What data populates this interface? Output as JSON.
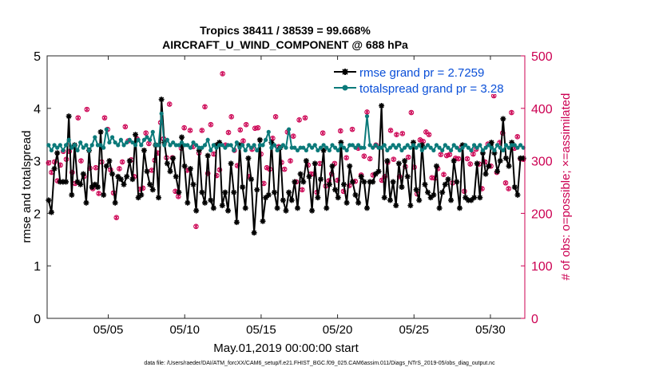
{
  "chart_data": {
    "type": "line",
    "title_line1": "Tropics 38411 / 38539 = 99.668%",
    "title_line2": "AIRCRAFT_U_WIND_COMPONENT @ 688 hPa",
    "xlabel": "May.01,2019 00:00:00 start",
    "ylabel_left": "rmse and totalspread",
    "ylabel_right": "# of obs: o=possible; ×=assimilated",
    "footnote": "data file: /Users/raeder/DAI/ATM_forcXX/CAM6_setup/f.e21.FHIST_BGC.f09_025.CAM6assim.011/Diags_NTrS_2019-05/obs_diag_output.nc",
    "x_range_days": [
      0,
      31.25
    ],
    "x_ticks": [
      {
        "day": 4,
        "label": "05/05"
      },
      {
        "day": 9,
        "label": "05/10"
      },
      {
        "day": 14,
        "label": "05/15"
      },
      {
        "day": 19,
        "label": "05/20"
      },
      {
        "day": 24,
        "label": "05/25"
      },
      {
        "day": 29,
        "label": "05/30"
      }
    ],
    "ylim_left": [
      0,
      5
    ],
    "yticks_left": [
      "0",
      "1",
      "2",
      "3",
      "4",
      "5"
    ],
    "ylim_right": [
      0,
      500
    ],
    "yticks_right": [
      "0",
      "100",
      "200",
      "300",
      "400",
      "500"
    ],
    "legend_position": "top-right",
    "series": [
      {
        "name": "rmse grand pr = 2.7259",
        "color": "#000000",
        "axis": "left",
        "values": [
          2.25,
          2.02,
          2.85,
          3.15,
          2.6,
          2.6,
          2.6,
          3.85,
          2.35,
          3.3,
          2.6,
          2.55,
          2.75,
          2.2,
          3.2,
          2.5,
          2.55,
          2.5,
          3.55,
          2.35,
          2.9,
          3.0,
          2.75,
          2.2,
          2.7,
          2.65,
          2.55,
          2.7,
          3.0,
          2.65,
          3.5,
          2.3,
          2.35,
          3.2,
          2.8,
          2.55,
          2.45,
          3.3,
          2.3,
          4.17,
          3.35,
          2.95,
          2.8,
          3.05,
          2.7,
          2.4,
          3.45,
          2.9,
          2.2,
          2.85,
          2.55,
          2.05,
          3.2,
          2.4,
          2.2,
          3.1,
          2.25,
          2.1,
          3.3,
          3.35,
          2.15,
          2.4,
          2.05,
          2.95,
          2.4,
          1.83,
          3.3,
          2.5,
          2.1,
          3.05,
          2.65,
          1.63,
          2.45,
          3.4,
          1.85,
          2.3,
          2.35,
          3.35,
          2.4,
          2.1,
          3.25,
          2.25,
          2.05,
          2.4,
          2.25,
          2.6,
          2.1,
          2.75,
          2.6,
          3.0,
          2.7,
          2.05,
          2.95,
          2.3,
          2.65,
          3.2,
          2.1,
          2.55,
          2.9,
          2.45,
          2.3,
          3.35,
          2.55,
          2.2,
          2.9,
          2.6,
          2.35,
          2.2,
          2.7,
          2.6,
          2.1,
          2.6,
          2.6,
          2.75,
          2.8,
          4.05,
          2.3,
          3.0,
          2.25,
          2.6,
          2.15,
          2.95,
          2.5,
          3.0,
          2.7,
          2.15,
          3.35,
          2.45,
          2.25,
          3.3,
          2.55,
          2.4,
          2.3,
          2.35,
          2.9,
          2.1,
          2.4,
          2.55,
          2.65,
          2.25,
          3.0,
          2.6,
          2.1,
          3.3,
          2.3,
          2.25,
          2.25,
          2.3,
          2.95,
          2.3,
          3.15,
          2.75,
          2.9,
          3.35,
          3.15,
          2.8,
          3.0,
          3.8,
          3.05,
          2.9,
          3.35,
          2.5,
          2.35,
          3.05,
          3.05
        ]
      },
      {
        "name": "totalspread grand pr = 3.28",
        "color": "#0b7a7a",
        "axis": "left",
        "values": [
          3.3,
          3.2,
          3.3,
          3.25,
          3.3,
          3.2,
          3.3,
          3.4,
          3.25,
          3.3,
          3.2,
          3.35,
          3.25,
          3.3,
          3.2,
          3.3,
          3.45,
          3.3,
          3.3,
          3.25,
          3.6,
          3.35,
          3.45,
          3.35,
          3.3,
          3.4,
          3.3,
          3.35,
          3.4,
          3.35,
          3.3,
          3.4,
          3.3,
          3.4,
          3.45,
          3.4,
          3.55,
          3.3,
          3.3,
          3.9,
          3.3,
          3.4,
          3.3,
          3.35,
          3.3,
          3.3,
          3.35,
          3.3,
          3.3,
          3.25,
          3.35,
          3.3,
          3.25,
          3.25,
          3.3,
          3.4,
          3.2,
          3.3,
          3.25,
          3.3,
          3.3,
          3.25,
          3.3,
          3.3,
          3.2,
          3.35,
          3.25,
          3.3,
          3.2,
          3.3,
          3.25,
          3.3,
          3.2,
          3.3,
          3.3,
          3.4,
          3.55,
          3.25,
          3.3,
          3.2,
          3.25,
          3.3,
          3.25,
          3.6,
          3.25,
          3.25,
          3.2,
          3.25,
          3.25,
          3.2,
          3.3,
          3.25,
          3.3,
          3.2,
          3.25,
          3.3,
          3.25,
          3.2,
          3.3,
          3.25,
          3.2,
          3.3,
          3.25,
          3.2,
          3.3,
          3.3,
          3.25,
          3.3,
          3.25,
          3.25,
          3.85,
          3.3,
          3.25,
          3.3,
          3.25,
          3.25,
          3.3,
          3.2,
          3.25,
          3.3,
          3.25,
          3.3,
          3.2,
          3.25,
          3.3,
          3.25,
          3.3,
          3.25,
          3.3,
          3.2,
          3.25,
          3.3,
          3.25,
          3.2,
          3.3,
          3.25,
          3.2,
          3.3,
          3.25,
          3.2,
          3.3,
          3.25,
          3.2,
          3.25,
          3.3,
          3.25,
          3.2,
          3.3,
          3.25,
          3.3,
          3.2,
          3.25,
          3.3,
          3.25,
          3.2,
          3.3,
          3.25,
          3.2,
          3.3,
          3.25,
          3.3,
          3.3,
          3.25,
          3.3,
          3.25
        ]
      }
    ],
    "obs_counts": {
      "axis": "right",
      "color": "#cc0052",
      "possible": [
        296,
        278,
        298,
        262,
        292,
        318,
        303,
        318,
        278,
        257,
        382,
        300,
        270,
        398,
        286,
        247,
        287,
        238,
        298,
        382,
        360,
        283,
        239,
        192,
        285,
        298,
        365,
        338,
        302,
        270,
        342,
        246,
        248,
        353,
        333,
        282,
        301,
        315,
        373,
        342,
        306,
        408,
        306,
        242,
        232,
        324,
        363,
        282,
        358,
        327,
        175,
        315,
        358,
        403,
        276,
        369,
        313,
        272,
        283,
        466,
        330,
        354,
        384,
        320,
        291,
        359,
        338,
        369,
        270,
        322,
        362,
        363,
        313,
        257,
        287,
        284,
        343,
        384,
        327,
        297,
        284,
        355,
        300,
        347,
        260,
        378,
        245,
        382,
        292,
        275,
        275,
        240,
        295,
        353,
        252,
        262,
        275,
        295,
        263,
        357,
        242,
        306,
        253,
        360,
        261,
        324,
        273,
        309,
        393,
        304,
        273,
        330,
        458,
        263,
        270,
        297,
        358,
        303,
        350,
        270,
        352,
        289,
        307,
        392,
        288,
        237,
        340,
        337,
        355,
        350,
        268,
        267,
        285,
        312,
        274,
        310,
        312,
        258,
        305,
        304,
        326,
        242,
        304,
        294,
        313,
        322,
        294,
        247,
        298,
        332,
        290,
        424,
        278,
        335,
        353,
        258,
        247,
        392,
        324,
        346,
        304,
        303
      ]
    }
  },
  "legend": {
    "rmse_label": "rmse grand pr = 2.7259",
    "spread_label": "totalspread grand pr = 3.28"
  }
}
